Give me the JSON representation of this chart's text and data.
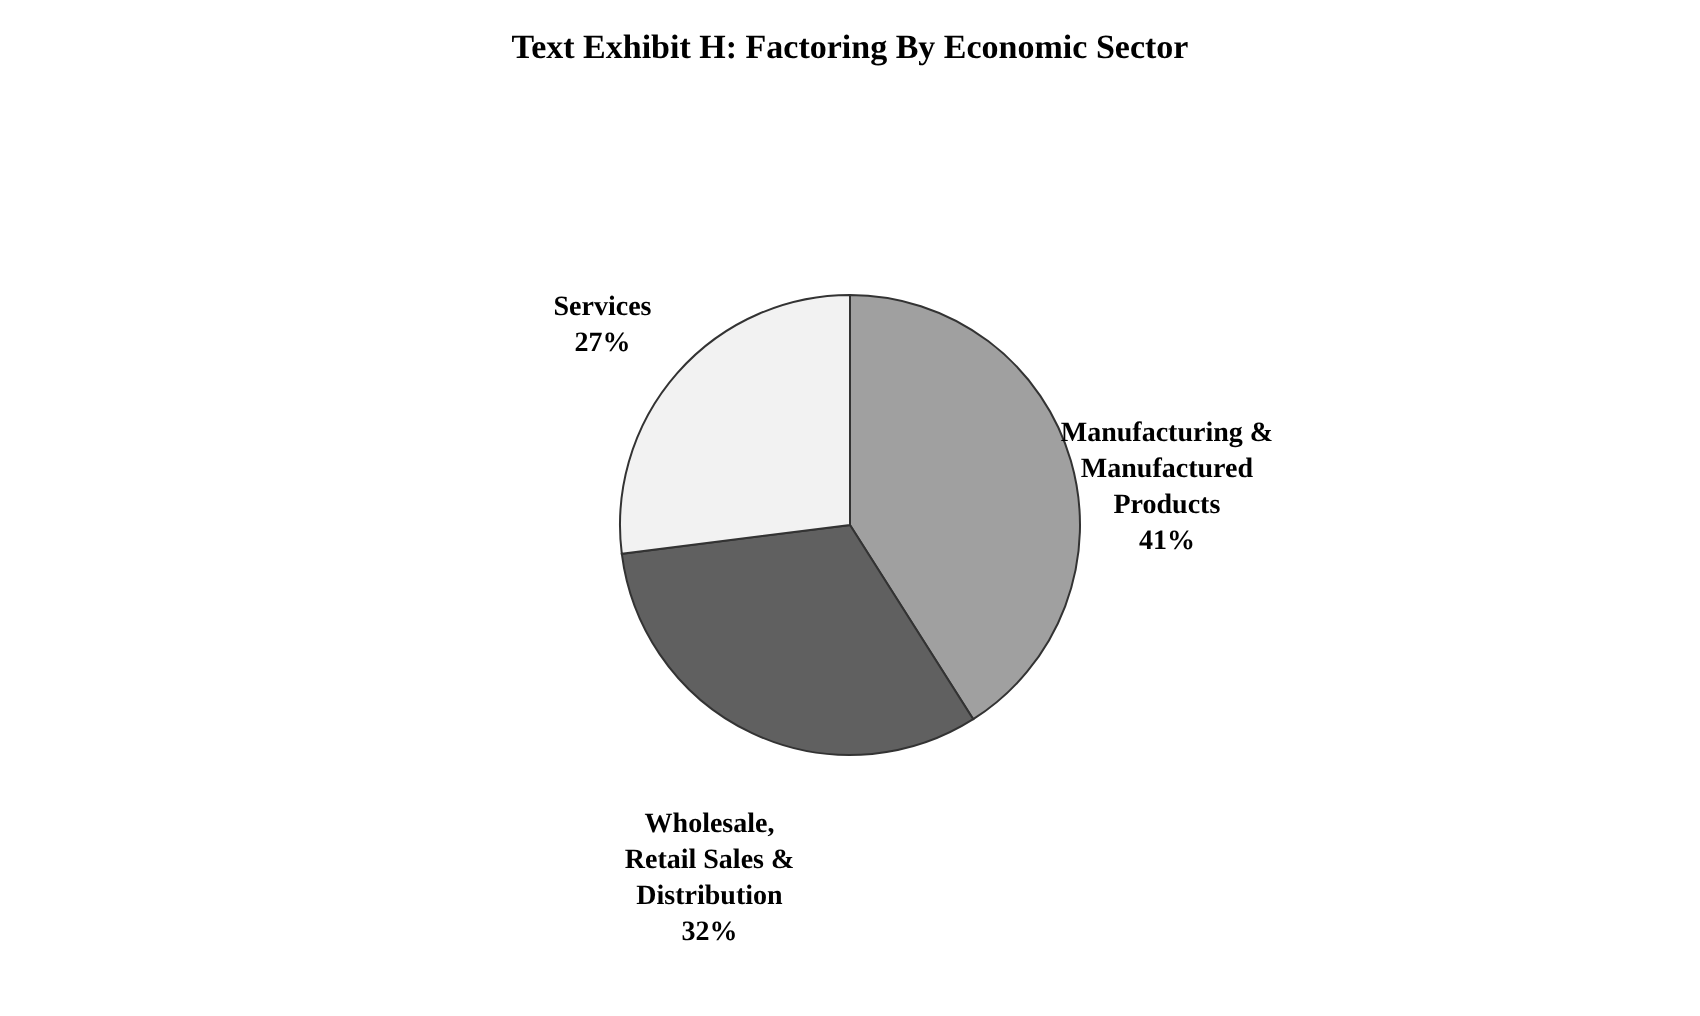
{
  "chart_data": {
    "type": "pie",
    "title": "Text Exhibit H: Factoring By Economic Sector",
    "categories": [
      "Manufacturing & Manufactured Products",
      "Wholesale, Retail Sales & Distribution",
      "Services"
    ],
    "values": [
      41,
      32,
      27
    ],
    "colors": [
      "#a0a0a0",
      "#606060",
      "#f2f2f2"
    ],
    "value_labels": [
      "41%",
      "32%",
      "27%"
    ]
  }
}
